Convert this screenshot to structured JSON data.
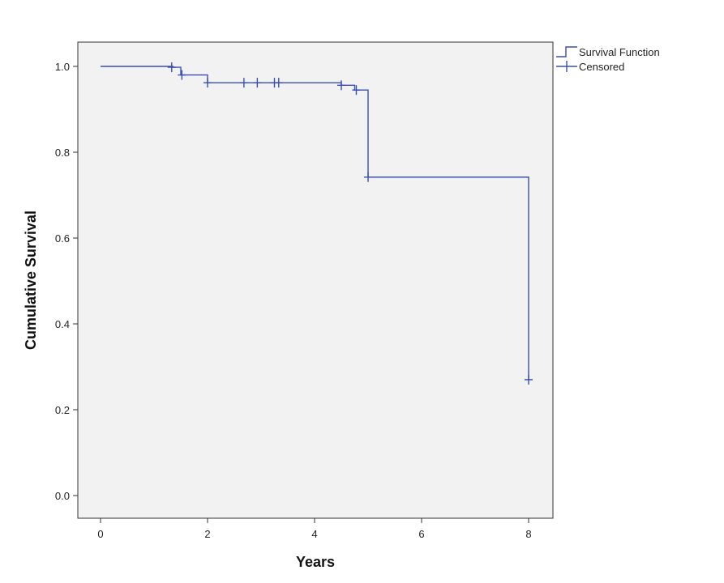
{
  "chart_data": {
    "type": "line",
    "title": "",
    "xlabel": "Years",
    "ylabel": "Cumulative Survival",
    "xlim": [
      0,
      8.5
    ],
    "ylim": [
      0,
      1.0
    ],
    "x_ticks": [
      0,
      2,
      4,
      6,
      8
    ],
    "x_tick_labels": [
      "0",
      "2",
      "4",
      "6",
      "8"
    ],
    "y_ticks": [
      0.0,
      0.2,
      0.4,
      0.6,
      0.8,
      1.0
    ],
    "y_tick_labels": [
      "0.0",
      "0.2",
      "0.4",
      "0.6",
      "0.8",
      "1.0"
    ],
    "grid": false,
    "legend_position": "top-right-outside",
    "colors": {
      "series": "#3a4fb0",
      "plot_bg": "#f2f2f2",
      "axis": "#333333"
    },
    "legend": [
      {
        "label": "Survival Function",
        "symbol": "step"
      },
      {
        "label": "Censored",
        "symbol": "plus"
      }
    ],
    "series": [
      {
        "name": "Survival Function",
        "type": "step",
        "points": [
          [
            0,
            1.0
          ],
          [
            1.35,
            0.998
          ],
          [
            1.5,
            0.98
          ],
          [
            2.0,
            0.962
          ],
          [
            4.5,
            0.956
          ],
          [
            4.75,
            0.945
          ],
          [
            5.0,
            0.742
          ],
          [
            8.0,
            0.27
          ]
        ]
      },
      {
        "name": "Censored",
        "type": "scatter",
        "points": [
          [
            1.33,
            0.998
          ],
          [
            1.52,
            0.98
          ],
          [
            2.0,
            0.962
          ],
          [
            2.68,
            0.962
          ],
          [
            2.93,
            0.962
          ],
          [
            3.25,
            0.962
          ],
          [
            3.33,
            0.962
          ],
          [
            4.5,
            0.956
          ],
          [
            4.78,
            0.945
          ],
          [
            5.0,
            0.742
          ],
          [
            8.0,
            0.27
          ]
        ]
      }
    ]
  }
}
